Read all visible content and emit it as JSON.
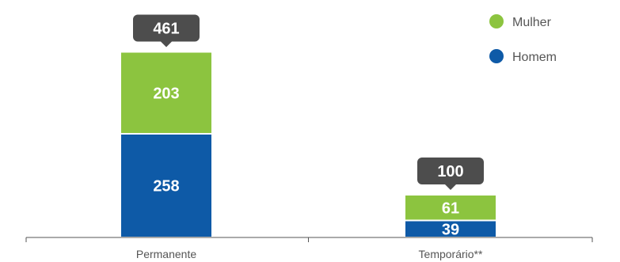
{
  "chart_data": {
    "type": "bar",
    "stacked": true,
    "categories": [
      "Permanente",
      "Temporário**"
    ],
    "series": [
      {
        "name": "Homem",
        "values": [
          258,
          39
        ],
        "color": "#0e5aa7"
      },
      {
        "name": "Mulher",
        "values": [
          203,
          61
        ],
        "color": "#8cc43f"
      }
    ],
    "totals": [
      461,
      100
    ],
    "title": "",
    "xlabel": "",
    "ylabel": "",
    "legend": {
      "placement": "top-right",
      "items": [
        {
          "label": "Mulher",
          "color": "#8cc43f"
        },
        {
          "label": "Homem",
          "color": "#0e5aa7"
        }
      ]
    },
    "grid": false,
    "total_badge_color": "#4d4d4d",
    "axis_color": "#555555"
  }
}
